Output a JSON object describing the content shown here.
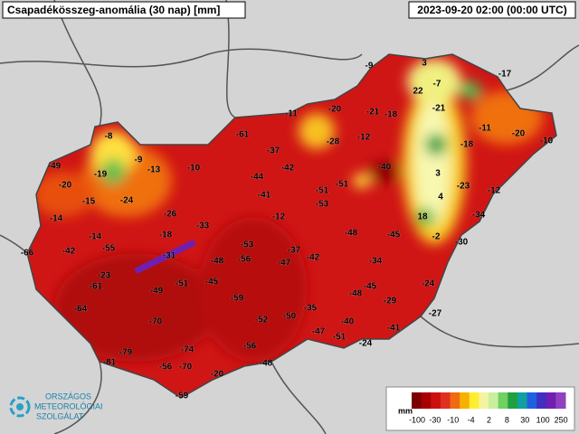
{
  "header": {
    "title": "Csapadékösszeg-anomália (30 nap) [mm]",
    "timestamp": "2023-09-20 02:00 (00:00 UTC)"
  },
  "stations": [
    -9,
    3,
    -17,
    -7,
    22,
    -11,
    -20,
    -21,
    -18,
    -21,
    -11,
    -20,
    -10,
    -8,
    -61,
    -28,
    -12,
    -18,
    -9,
    -37,
    -49,
    -13,
    -10,
    -42,
    -40,
    3,
    -19,
    -44,
    -20,
    -51,
    -23,
    -12,
    -15,
    -24,
    -41,
    -51,
    4,
    -53,
    -14,
    -26,
    -12,
    18,
    -34,
    -33,
    -14,
    -18,
    -48,
    -45,
    -2,
    -30,
    -66,
    -42,
    -55,
    -31,
    -53,
    -37,
    -47,
    -42,
    -48,
    -56,
    -34,
    -23,
    -61,
    -51,
    -45,
    -49,
    -45,
    -48,
    -24,
    -29,
    -59,
    -64,
    -35,
    -52,
    -50,
    -70,
    -40,
    -27,
    -41,
    -47,
    -51,
    -56,
    -74,
    -24,
    -79,
    -81,
    -56,
    -70,
    -48,
    -20,
    -59
  ],
  "legend": {
    "unit": "mm",
    "labels": [
      -100,
      -30,
      -10,
      -4,
      2,
      8,
      30,
      100,
      250
    ],
    "colors": [
      "#7a0000",
      "#a80000",
      "#cc1010",
      "#e03020",
      "#f06a10",
      "#f8b000",
      "#ffee30",
      "#f4f4a0",
      "#c8eea0",
      "#70d060",
      "#20a040",
      "#10a0a0",
      "#2060e0",
      "#4030c0",
      "#7020b0",
      "#9040c0"
    ]
  },
  "logo": {
    "line1": "ORSZÁGOS",
    "line2": "METEOROLÓGIAI",
    "line3": "SZOLGÁLAT"
  }
}
